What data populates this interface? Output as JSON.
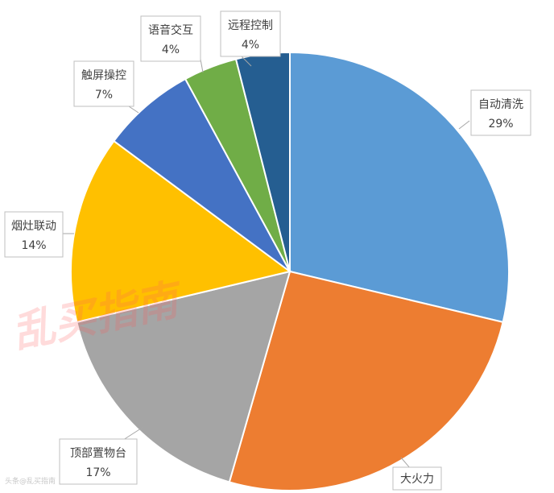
{
  "chart_data": {
    "type": "pie",
    "slices": [
      {
        "label": "自动清洗",
        "value": 29,
        "display": "29%",
        "color": "#5b9bd5"
      },
      {
        "label": "大火力",
        "value": 26,
        "display": "",
        "color": "#ed7d31"
      },
      {
        "label": "顶部置物台",
        "value": 17,
        "display": "17%",
        "color": "#a5a5a5"
      },
      {
        "label": "烟灶联动",
        "value": 14,
        "display": "14%",
        "color": "#ffc000"
      },
      {
        "label": "触屏操控",
        "value": 7,
        "display": "7%",
        "color": "#4472c4"
      },
      {
        "label": "语音交互",
        "value": 4,
        "display": "4%",
        "color": "#70ad47"
      },
      {
        "label": "远程控制",
        "value": 4,
        "display": "4%",
        "color": "#255e91"
      }
    ],
    "watermark": "乱买指南",
    "credit": "头条@乱买指南"
  }
}
